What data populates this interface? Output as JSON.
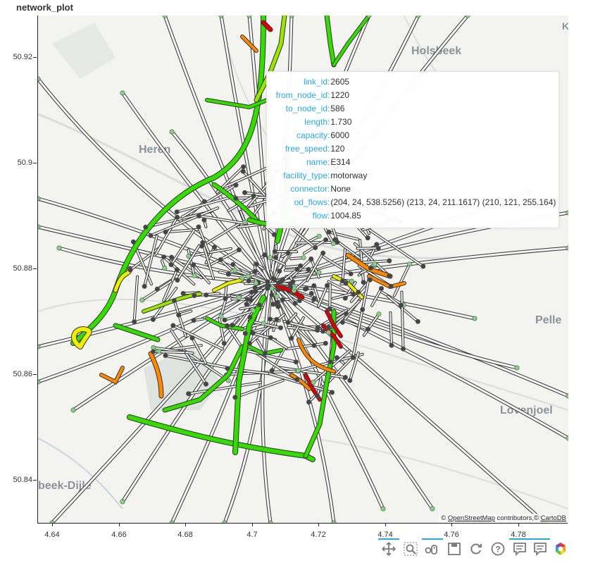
{
  "title": "network_plot",
  "axes": {
    "x_ticks": [
      "4.64",
      "4.66",
      "4.68",
      "4.7",
      "4.72",
      "4.74",
      "4.76",
      "4.78"
    ],
    "y_ticks": [
      "50.92",
      "50.9",
      "50.88",
      "50.86",
      "50.84"
    ]
  },
  "map": {
    "place_labels": [
      "Holsbeek",
      "Heren",
      "Pelle",
      "Lovenjoel",
      "beek-Dijle"
    ],
    "corner_glyph": "K",
    "attribution_prefix": "© ",
    "attribution_osm": "OpenStreetMap",
    "attribution_mid": " contributors,© ",
    "attribution_carto": "CartoDB"
  },
  "tooltip": {
    "rows": [
      {
        "key": "link_id",
        "value": "2605"
      },
      {
        "key": "from_node_id",
        "value": "1220"
      },
      {
        "key": "to_node_id",
        "value": "586"
      },
      {
        "key": "length",
        "value": "1.730"
      },
      {
        "key": "capacity",
        "value": "6000"
      },
      {
        "key": "free_speed",
        "value": "120"
      },
      {
        "key": "name",
        "value": "E314"
      },
      {
        "key": "facility_type",
        "value": "motorway"
      },
      {
        "key": "connector",
        "value": "None"
      },
      {
        "key": "od_flows",
        "value": "(204, 24, 538.5256) (213, 24, 211.1617) (210, 121, 255.164)"
      },
      {
        "key": "flow",
        "value": "1004.85"
      }
    ]
  },
  "toolbar": {
    "tools": [
      "pan-tool",
      "box-zoom-tool",
      "wheel-zoom-tool",
      "save-tool",
      "reset-tool",
      "help-tool",
      "hover-tool-1",
      "hover-tool-2",
      "bokeh-logo"
    ]
  },
  "colors": {
    "flow_low": "#33dd00",
    "flow_mid_low": "#99e600",
    "flow_mid": "#eeee00",
    "flow_mid_high": "#ff8800",
    "flow_high": "#dd0000",
    "node_fill": "#444444",
    "connector_fill": "#7fd67f",
    "link_outline": "#333333",
    "tooltip_key": "#26aae1"
  }
}
